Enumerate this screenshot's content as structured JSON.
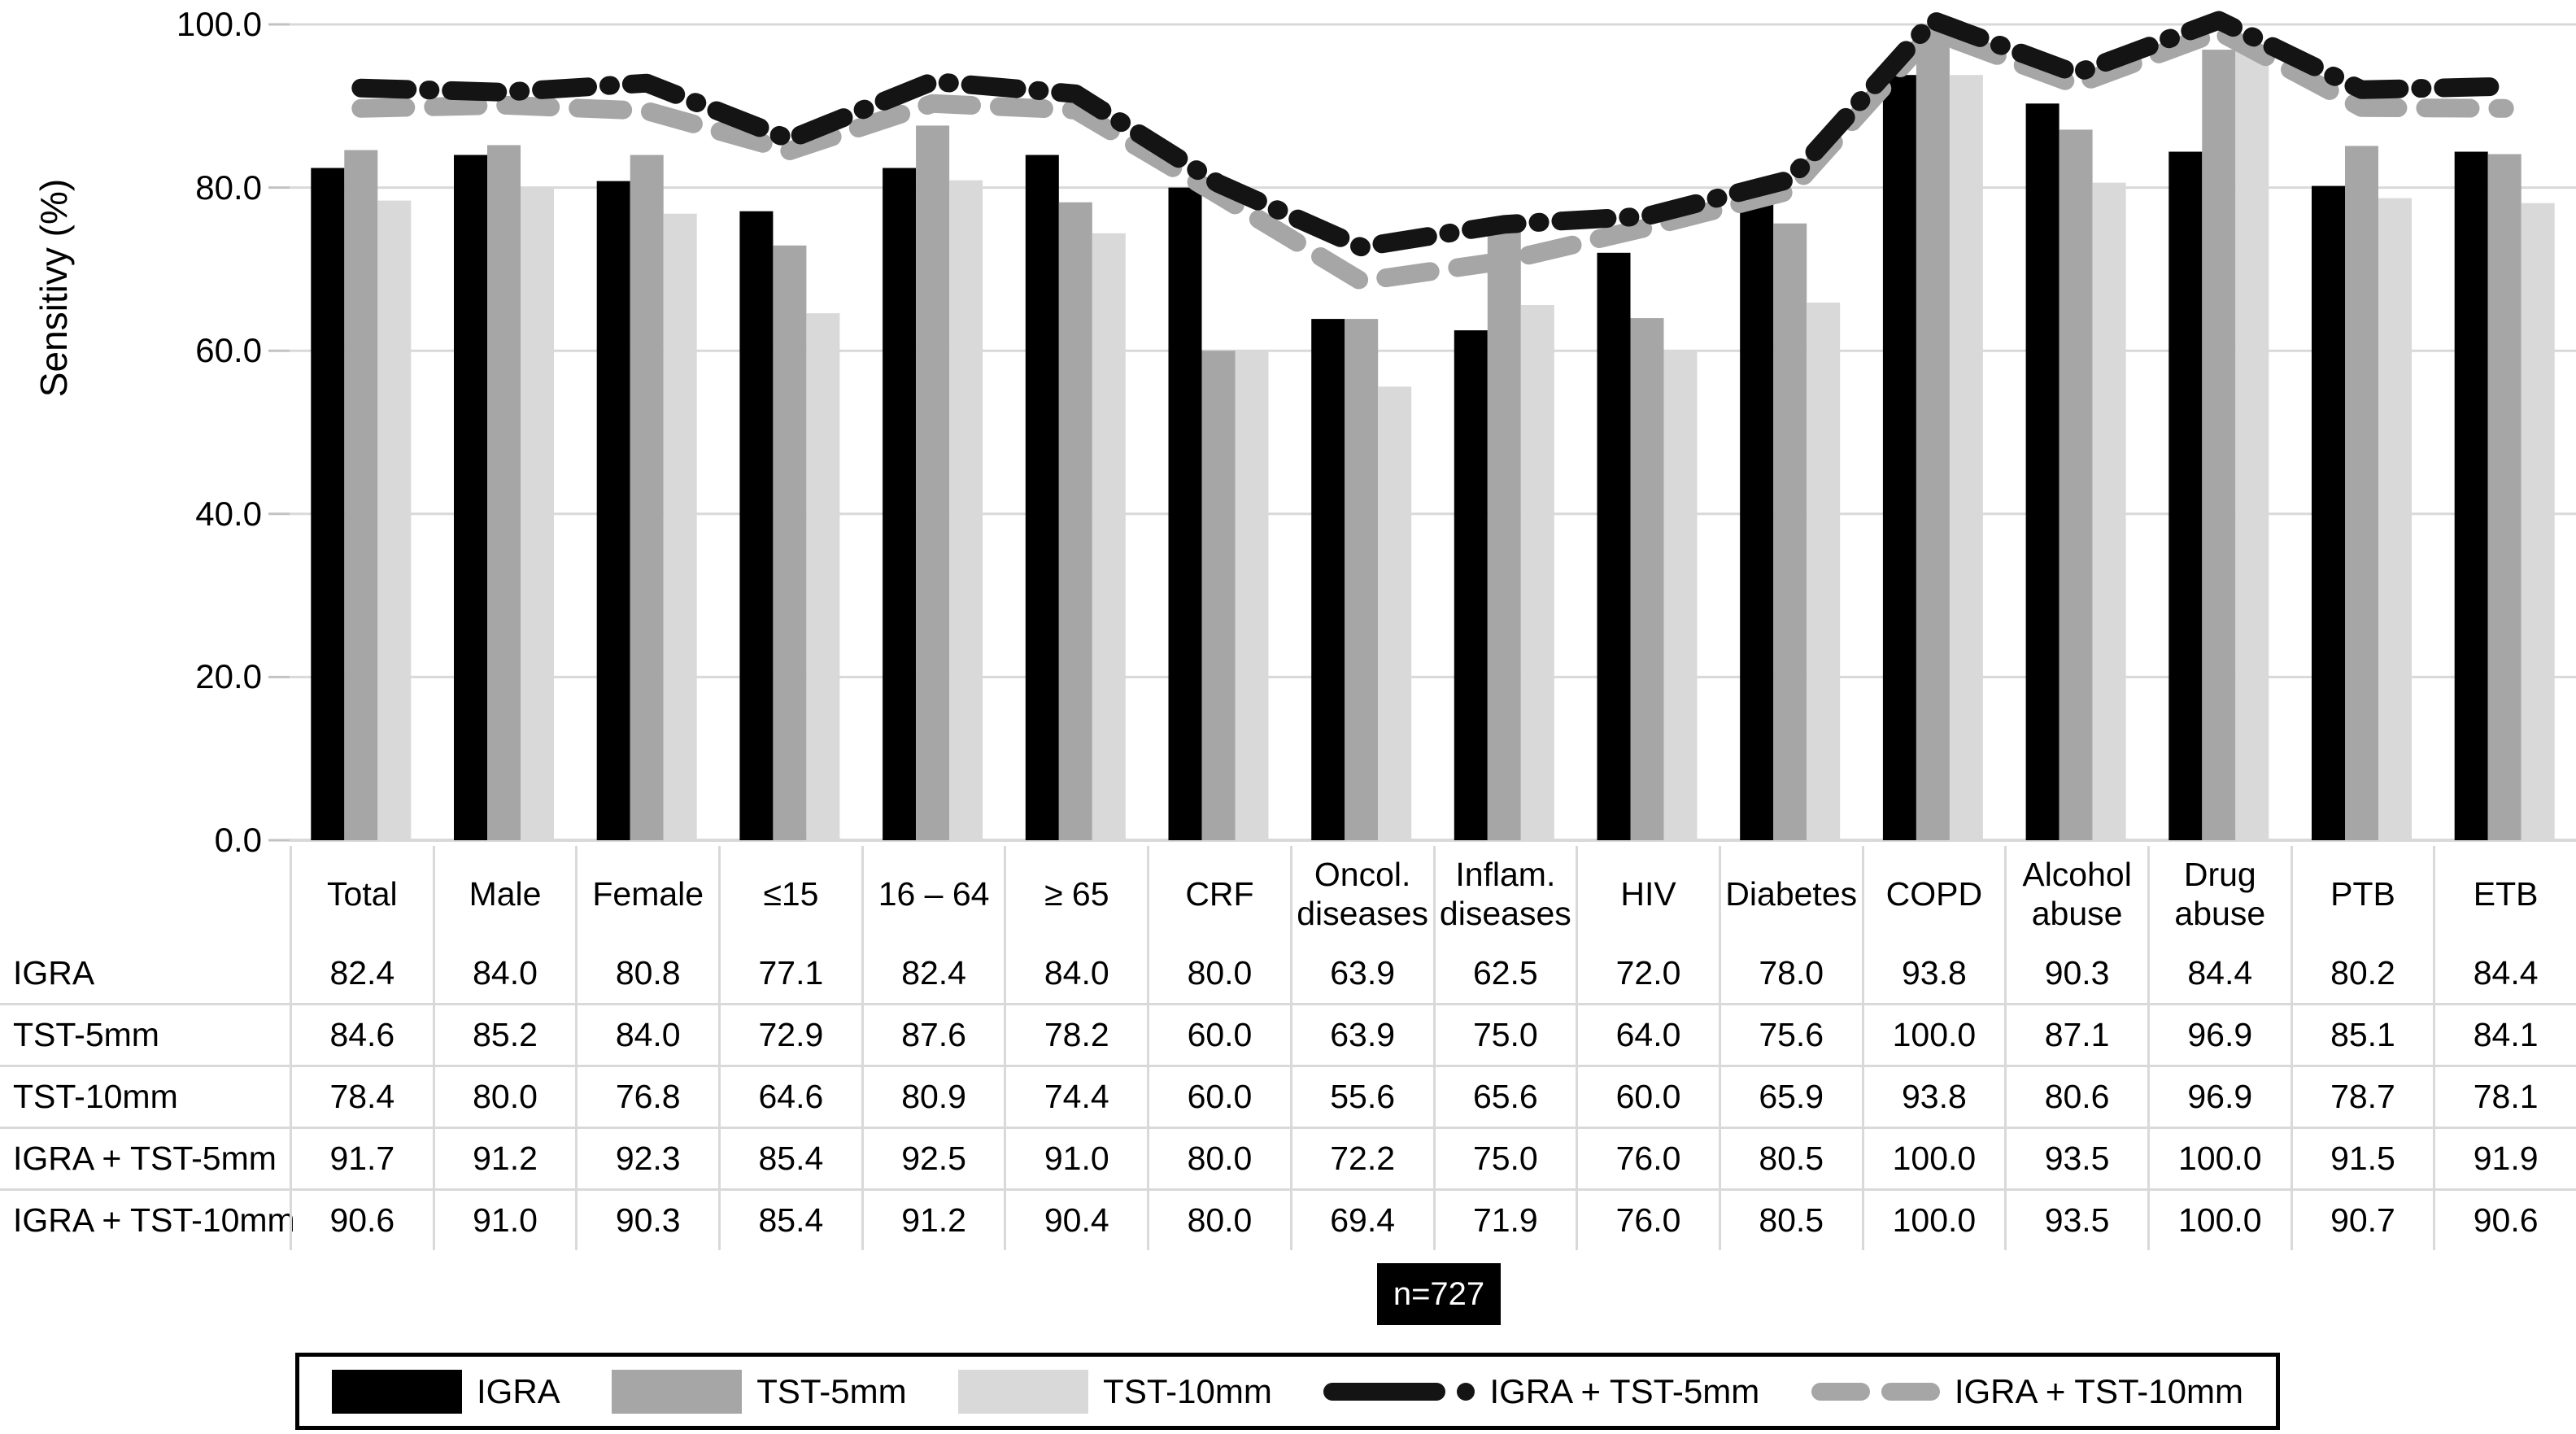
{
  "figure": {
    "ylabel": "Sensitivy (%)",
    "annotation": "n=727"
  },
  "chart_data": {
    "type": "bar",
    "title": "",
    "xlabel": "",
    "ylabel": "Sensitivy (%)",
    "ylim": [
      0,
      100
    ],
    "yticks": [
      "0.0",
      "20.0",
      "40.0",
      "60.0",
      "80.0",
      "100.0"
    ],
    "grid": true,
    "legend_position": "bottom",
    "annotation": "n=727",
    "categories": [
      "Total",
      "Male",
      "Female",
      "≤15",
      "16 – 64",
      "≥ 65",
      "CRF",
      "Oncol. diseases",
      "Inflam. diseases",
      "HIV",
      "Diabetes",
      "COPD",
      "Alcohol abuse",
      "Drug abuse",
      "PTB",
      "ETB"
    ],
    "categories_lines": [
      [
        "Total"
      ],
      [
        "Male"
      ],
      [
        "Female"
      ],
      [
        "≤15"
      ],
      [
        "16 – 64"
      ],
      [
        "≥ 65"
      ],
      [
        "CRF"
      ],
      [
        "Oncol.",
        "diseases"
      ],
      [
        "Inflam.",
        "diseases"
      ],
      [
        "HIV"
      ],
      [
        "Diabetes"
      ],
      [
        "COPD"
      ],
      [
        "Alcohol",
        "abuse"
      ],
      [
        "Drug",
        "abuse"
      ],
      [
        "PTB"
      ],
      [
        "ETB"
      ]
    ],
    "series": [
      {
        "name": "IGRA",
        "type": "bar",
        "color": "#000000",
        "values": [
          "82.4",
          "84.0",
          "80.8",
          "77.1",
          "82.4",
          "84.0",
          "80.0",
          "63.9",
          "62.5",
          "72.0",
          "78.0",
          "93.8",
          "90.3",
          "84.4",
          "80.2",
          "84.4"
        ]
      },
      {
        "name": "TST-5mm",
        "type": "bar",
        "color": "#a6a6a6",
        "values": [
          "84.6",
          "85.2",
          "84.0",
          "72.9",
          "87.6",
          "78.2",
          "60.0",
          "63.9",
          "75.0",
          "64.0",
          "75.6",
          "100.0",
          "87.1",
          "96.9",
          "85.1",
          "84.1"
        ]
      },
      {
        "name": "TST-10mm",
        "type": "bar",
        "color": "#d9d9d9",
        "values": [
          "78.4",
          "80.0",
          "76.8",
          "64.6",
          "80.9",
          "74.4",
          "60.0",
          "55.6",
          "65.6",
          "60.0",
          "65.9",
          "93.8",
          "80.6",
          "96.9",
          "78.7",
          "78.1"
        ]
      },
      {
        "name": "IGRA + TST-5mm",
        "type": "line",
        "dash": "dash-dot",
        "color": "#141414",
        "values": [
          "91.7",
          "91.2",
          "92.3",
          "85.4",
          "92.5",
          "91.0",
          "80.0",
          "72.2",
          "75.0",
          "76.0",
          "80.5",
          "100.0",
          "93.5",
          "100.0",
          "91.5",
          "91.9"
        ]
      },
      {
        "name": "IGRA + TST-10mm",
        "type": "line",
        "dash": "dash",
        "color": "#a6a6a6",
        "values": [
          "90.6",
          "91.0",
          "90.3",
          "85.4",
          "91.2",
          "90.4",
          "80.0",
          "69.4",
          "71.9",
          "76.0",
          "80.5",
          "100.0",
          "93.5",
          "100.0",
          "90.7",
          "90.6"
        ]
      }
    ],
    "colors": {
      "bar_black": "#000000",
      "bar_gray": "#a6a6a6",
      "bar_lightgray": "#d9d9d9",
      "gridline": "#d9d9d9",
      "tick": "#c2c2c2",
      "line_black": "#141414",
      "line_gray": "#a6a6a6",
      "badge_bg": "#000000",
      "badge_text": "#ffffff"
    }
  }
}
